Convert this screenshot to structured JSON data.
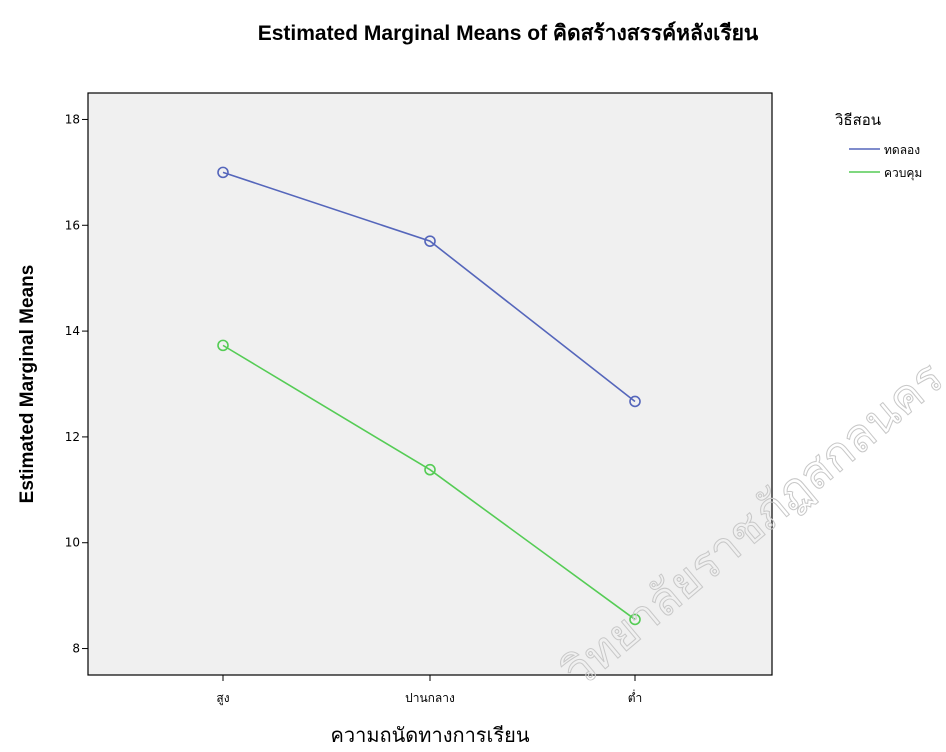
{
  "chart_data": {
    "type": "line",
    "title": "Estimated Marginal Means of คิดสร้างสรรค์หลังเรียน",
    "xlabel": "ความถนัดทางการเรียน",
    "ylabel": "Estimated Marginal Means",
    "categories": [
      "สูง",
      "ปานกลาง",
      "ต่ำ"
    ],
    "ylim": [
      7.5,
      18.5
    ],
    "yticks": [
      8,
      10,
      12,
      14,
      16,
      18
    ],
    "legend": {
      "title": "วิธีสอน",
      "placement": "right"
    },
    "series": [
      {
        "name": "ทดลอง",
        "color": "#5566bb",
        "values": [
          17.0,
          15.7,
          12.67
        ]
      },
      {
        "name": "ควบคุม",
        "color": "#55cc55",
        "values": [
          13.73,
          11.38,
          8.55
        ]
      }
    ],
    "grid": false,
    "plot_background": "#f0f0f0",
    "marker": "circle-open"
  },
  "watermark": {
    "text": "วิทยาลัยราชภัฏสกลนคร"
  }
}
